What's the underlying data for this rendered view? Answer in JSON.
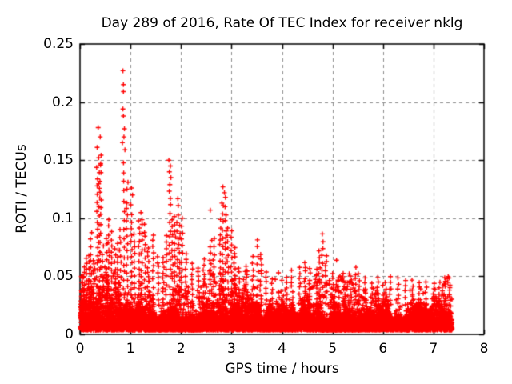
{
  "background": "#ffffff",
  "chart_data": {
    "type": "scatter",
    "title": "Day 289 of 2016, Rate Of TEC Index for receiver nklg",
    "xlabel": "GPS time / hours",
    "ylabel": "ROTI / TECUs",
    "xlim": [
      0,
      8
    ],
    "ylim": [
      0,
      0.25
    ],
    "x_tick_values": [
      0,
      1,
      2,
      3,
      4,
      5,
      6,
      7,
      8
    ],
    "x_tick_labels": [
      "0",
      "1",
      "2",
      "3",
      "4",
      "5",
      "6",
      "7",
      "8"
    ],
    "y_tick_values": [
      0,
      0.05,
      0.1,
      0.15,
      0.2,
      0.25
    ],
    "y_tick_labels": [
      "0",
      "0.05",
      "0.1",
      "0.15",
      "0.2",
      "0.25"
    ],
    "grid": true,
    "legend_position": "none",
    "marker": {
      "shape": "plus",
      "size": 7,
      "color": "#ff0000"
    },
    "colors": {
      "marker": "#ff0000",
      "frame": "#000000",
      "grid": "#8c8c8c",
      "text": "#000000"
    },
    "data_extent": {
      "t_start": 0.01,
      "t_end": 7.37,
      "roti_min": 0.002,
      "roti_max": 0.227
    },
    "notable_points": [
      [
        0.85,
        0.227
      ],
      [
        0.86,
        0.215
      ],
      [
        0.86,
        0.209
      ],
      [
        0.85,
        0.194
      ],
      [
        0.86,
        0.188
      ],
      [
        0.88,
        0.177
      ],
      [
        0.87,
        0.17
      ],
      [
        0.84,
        0.165
      ],
      [
        0.89,
        0.159
      ],
      [
        0.36,
        0.178
      ],
      [
        0.4,
        0.17
      ],
      [
        0.34,
        0.161
      ],
      [
        0.37,
        0.152
      ],
      [
        0.41,
        0.147
      ],
      [
        1.76,
        0.15
      ],
      [
        1.79,
        0.145
      ],
      [
        1.77,
        0.14
      ],
      [
        1.8,
        0.135
      ],
      [
        1.78,
        0.129
      ],
      [
        2.83,
        0.127
      ],
      [
        2.86,
        0.122
      ],
      [
        2.88,
        0.118
      ],
      [
        2.81,
        0.113
      ],
      [
        0.95,
        0.131
      ],
      [
        0.93,
        0.125
      ],
      [
        1.02,
        0.126
      ],
      [
        1.04,
        0.12
      ],
      [
        2.58,
        0.107
      ],
      [
        2.61,
        0.081
      ],
      [
        3.93,
        0.053
      ]
    ],
    "burst_columns": [
      [
        0.03,
        0.05
      ],
      [
        0.08,
        0.06
      ],
      [
        0.13,
        0.066
      ],
      [
        0.18,
        0.072
      ],
      [
        0.22,
        0.09
      ],
      [
        0.27,
        0.065
      ],
      [
        0.34,
        0.15
      ],
      [
        0.38,
        0.14
      ],
      [
        0.41,
        0.16
      ],
      [
        0.45,
        0.08
      ],
      [
        0.52,
        0.085
      ],
      [
        0.57,
        0.1
      ],
      [
        0.62,
        0.088
      ],
      [
        0.7,
        0.076
      ],
      [
        0.75,
        0.082
      ],
      [
        0.8,
        0.095
      ],
      [
        0.87,
        0.155
      ],
      [
        0.93,
        0.118
      ],
      [
        1.02,
        0.112
      ],
      [
        1.08,
        0.092
      ],
      [
        1.17,
        0.105
      ],
      [
        1.22,
        0.11
      ],
      [
        1.28,
        0.1
      ],
      [
        1.35,
        0.076
      ],
      [
        1.45,
        0.086
      ],
      [
        1.55,
        0.07
      ],
      [
        1.65,
        0.067
      ],
      [
        1.7,
        0.09
      ],
      [
        1.78,
        0.126
      ],
      [
        1.83,
        0.1
      ],
      [
        1.88,
        0.106
      ],
      [
        1.93,
        0.12
      ],
      [
        1.97,
        0.1
      ],
      [
        2.02,
        0.105
      ],
      [
        2.1,
        0.07
      ],
      [
        2.22,
        0.062
      ],
      [
        2.35,
        0.06
      ],
      [
        2.45,
        0.065
      ],
      [
        2.58,
        0.078
      ],
      [
        2.65,
        0.085
      ],
      [
        2.78,
        0.1
      ],
      [
        2.83,
        0.112
      ],
      [
        2.88,
        0.11
      ],
      [
        2.93,
        0.095
      ],
      [
        3.0,
        0.09
      ],
      [
        3.06,
        0.075
      ],
      [
        3.15,
        0.062
      ],
      [
        3.3,
        0.06
      ],
      [
        3.42,
        0.068
      ],
      [
        3.52,
        0.082
      ],
      [
        3.58,
        0.072
      ],
      [
        3.68,
        0.058
      ],
      [
        3.8,
        0.052
      ],
      [
        4.1,
        0.05
      ],
      [
        4.2,
        0.057
      ],
      [
        4.35,
        0.058
      ],
      [
        4.45,
        0.065
      ],
      [
        4.55,
        0.058
      ],
      [
        4.68,
        0.06
      ],
      [
        4.74,
        0.075
      ],
      [
        4.8,
        0.092
      ],
      [
        4.87,
        0.068
      ],
      [
        5.0,
        0.057
      ],
      [
        5.12,
        0.05
      ],
      [
        5.25,
        0.048
      ],
      [
        5.45,
        0.057
      ],
      [
        5.52,
        0.054
      ],
      [
        5.65,
        0.05
      ],
      [
        5.78,
        0.048
      ],
      [
        5.9,
        0.05
      ],
      [
        6.05,
        0.048
      ],
      [
        6.15,
        0.053
      ],
      [
        6.3,
        0.05
      ],
      [
        6.45,
        0.047
      ],
      [
        6.58,
        0.05
      ],
      [
        6.72,
        0.045
      ],
      [
        6.85,
        0.046
      ],
      [
        7.0,
        0.048
      ],
      [
        7.12,
        0.045
      ],
      [
        7.22,
        0.05
      ],
      [
        7.32,
        0.048
      ]
    ],
    "background_band": {
      "t_start": 0.01,
      "t_end": 7.37,
      "dt": 0.0042,
      "points_per_step": 5,
      "floor": 0.0035,
      "mean_amplitude": 0.0095,
      "cap_base": 0.0305,
      "seed": 20161015
    }
  }
}
